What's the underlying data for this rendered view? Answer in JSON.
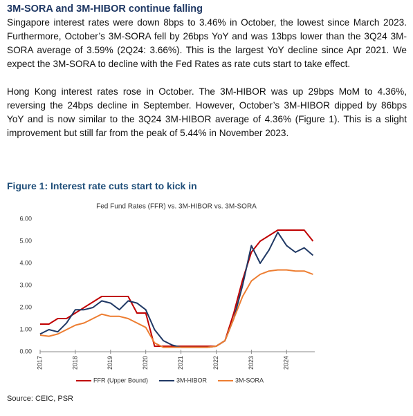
{
  "heading": "3M-SORA and 3M-HIBOR continue falling",
  "paragraphs": [
    "Singapore interest rates were down 8bps to 3.46% in October, the lowest since March 2023. Furthermore, October’s 3M-SORA fell by 26bps YoY and was 13bps lower than the 3Q24 3M-SORA average of 3.59% (2Q24: 3.66%). This is the largest YoY decline since Apr 2021. We expect the 3M-SORA to decline with the Fed Rates as rate cuts start to take effect.",
    "Hong Kong interest rates rose in October. The 3M-HIBOR was up 29bps MoM to 4.36%, reversing the 24bps decline in September. However, October’s 3M-HIBOR dipped by 86bps YoY and is now similar to the 3Q24 3M-HIBOR average of 4.36% (Figure 1). This is a slight improvement but still far from the peak of 5.44% in November 2023."
  ],
  "figure_title": "Figure 1: Interest rate cuts start to kick in",
  "chart_data": {
    "type": "line",
    "title": "Fed Fund Rates (FFR) vs. 3M-HIBOR vs. 3M-SORA",
    "x": [
      2017,
      2017.25,
      2017.5,
      2017.75,
      2018,
      2018.25,
      2018.5,
      2018.75,
      2019,
      2019.25,
      2019.5,
      2019.75,
      2020,
      2020.25,
      2020.5,
      2020.75,
      2021,
      2021.25,
      2021.5,
      2021.75,
      2022,
      2022.25,
      2022.5,
      2022.75,
      2023,
      2023.25,
      2023.5,
      2023.75,
      2024,
      2024.25,
      2024.5,
      2024.75
    ],
    "series": [
      {
        "name": "FFR (Upper Bound)",
        "color": "#c00000",
        "values": [
          1.25,
          1.25,
          1.5,
          1.5,
          1.75,
          2.0,
          2.25,
          2.5,
          2.5,
          2.5,
          2.5,
          1.75,
          1.75,
          0.25,
          0.25,
          0.25,
          0.25,
          0.25,
          0.25,
          0.25,
          0.25,
          0.5,
          1.75,
          3.25,
          4.5,
          5.0,
          5.25,
          5.5,
          5.5,
          5.5,
          5.5,
          5.0
        ]
      },
      {
        "name": "3M-HIBOR",
        "color": "#1f3864",
        "values": [
          0.8,
          1.0,
          0.9,
          1.3,
          1.9,
          1.9,
          2.0,
          2.3,
          2.2,
          1.9,
          2.3,
          2.2,
          1.9,
          1.0,
          0.5,
          0.3,
          0.2,
          0.2,
          0.2,
          0.2,
          0.25,
          0.5,
          1.5,
          3.0,
          4.8,
          4.0,
          4.6,
          5.4,
          4.8,
          4.5,
          4.7,
          4.36
        ]
      },
      {
        "name": "3M-SORA",
        "color": "#ed7d31",
        "values": [
          0.75,
          0.7,
          0.8,
          1.0,
          1.2,
          1.3,
          1.5,
          1.7,
          1.6,
          1.6,
          1.5,
          1.3,
          1.1,
          0.4,
          0.2,
          0.2,
          0.2,
          0.2,
          0.2,
          0.2,
          0.25,
          0.5,
          1.5,
          2.5,
          3.2,
          3.5,
          3.65,
          3.7,
          3.7,
          3.65,
          3.65,
          3.5
        ]
      }
    ],
    "xlim": [
      2017,
      2024.8
    ],
    "xticks": [
      2017,
      2018,
      2019,
      2020,
      2021,
      2022,
      2023,
      2024
    ],
    "ylim": [
      0,
      6
    ],
    "yticks": [
      {
        "value": 0,
        "label": "0.00"
      },
      {
        "value": 1,
        "label": "1.00"
      },
      {
        "value": 2,
        "label": "2.00"
      },
      {
        "value": 3,
        "label": "3.00"
      },
      {
        "value": 4,
        "label": "4.00"
      },
      {
        "value": 5,
        "label": "5.00"
      },
      {
        "value": 6,
        "label": "6.00"
      }
    ],
    "legend": "bottom"
  },
  "source": "Source: CEIC, PSR"
}
